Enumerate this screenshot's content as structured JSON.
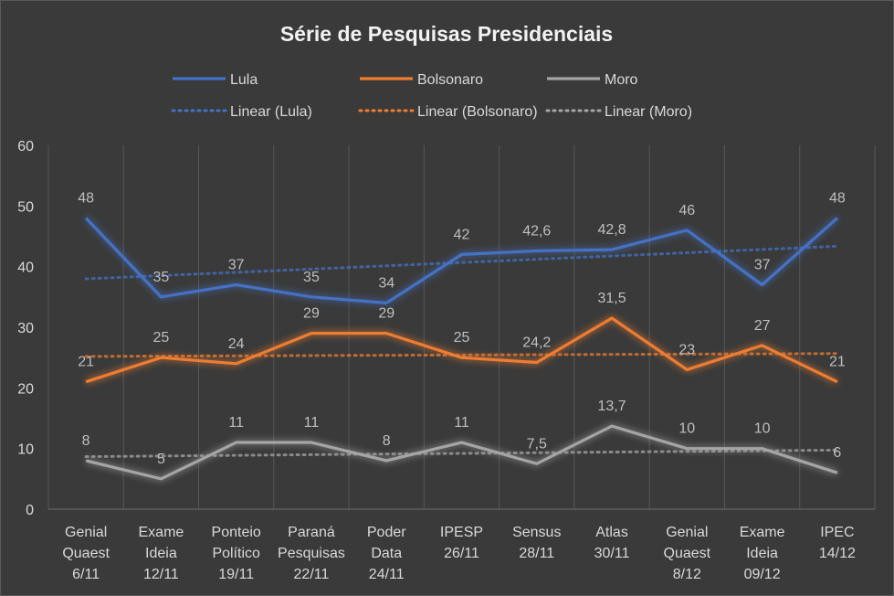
{
  "chart_data": {
    "type": "line",
    "title": "Série de Pesquisas Presidenciais",
    "categories": [
      [
        "Genial",
        "Quaest",
        "6/11"
      ],
      [
        "Exame",
        "Ideia",
        "12/11"
      ],
      [
        "Ponteio",
        "Político",
        "19/11"
      ],
      [
        "Paraná",
        "Pesquisas",
        "22/11"
      ],
      [
        "Poder",
        "Data",
        "24/11"
      ],
      [
        "IPESP",
        "26/11"
      ],
      [
        "Sensus",
        "28/11"
      ],
      [
        "Atlas",
        "30/11"
      ],
      [
        "Genial",
        "Quaest",
        "8/12"
      ],
      [
        "Exame",
        "Ideia",
        "09/12"
      ],
      [
        "IPEC",
        "14/12"
      ]
    ],
    "series": [
      {
        "name": "Lula",
        "color": "#4472c4",
        "values": [
          48,
          35,
          37,
          35,
          34,
          42,
          42.6,
          42.8,
          46,
          37,
          48
        ],
        "labels": [
          "48",
          "35",
          "37",
          "35",
          "34",
          "42",
          "42,6",
          "42,8",
          "46",
          "37",
          "48"
        ]
      },
      {
        "name": "Bolsonaro",
        "color": "#ed7d31",
        "values": [
          21,
          25,
          24,
          29,
          29,
          25,
          24.2,
          31.5,
          23,
          27,
          21
        ],
        "labels": [
          "21",
          "25",
          "24",
          "29",
          "29",
          "25",
          "24,2",
          "31,5",
          "23",
          "27",
          "21"
        ]
      },
      {
        "name": "Moro",
        "color": "#a5a5a5",
        "values": [
          8,
          5,
          11,
          11,
          8,
          11,
          7.5,
          13.7,
          10,
          10,
          6
        ],
        "labels": [
          "8",
          "5",
          "11",
          "11",
          "8",
          "11",
          "7,5",
          "13,7",
          "10",
          "10",
          "6"
        ]
      }
    ],
    "trendlines": [
      {
        "name": "Linear (Lula)",
        "color": "#4472c4",
        "series": 0
      },
      {
        "name": "Linear (Bolsonaro)",
        "color": "#ed7d31",
        "series": 1
      },
      {
        "name": "Linear (Moro)",
        "color": "#a5a5a5",
        "series": 2
      }
    ],
    "ylim": [
      0,
      60
    ],
    "yticks": [
      0,
      10,
      20,
      30,
      40,
      50,
      60
    ],
    "grid": "vertical",
    "legend": "top"
  }
}
